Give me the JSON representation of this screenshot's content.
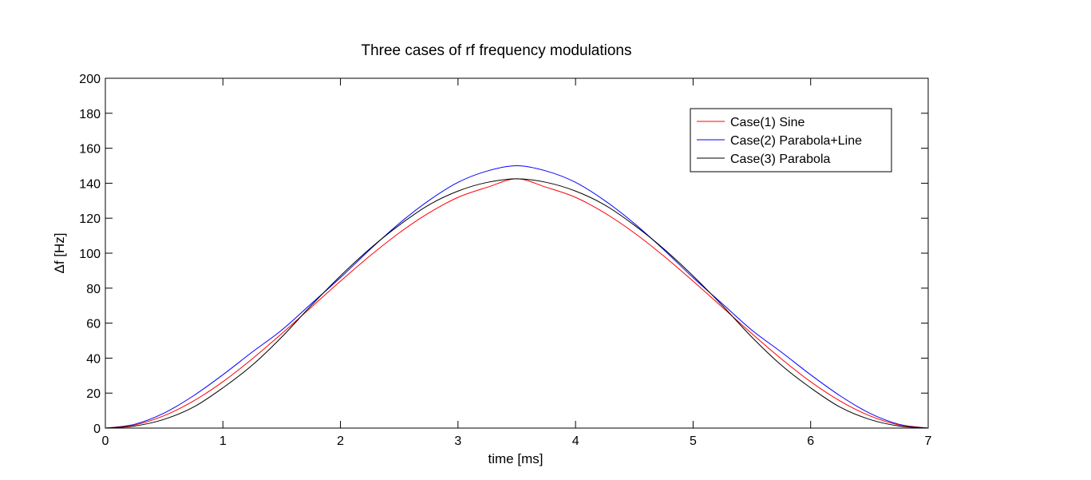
{
  "chart_data": {
    "type": "line",
    "title": "Three cases of rf frequency modulations",
    "xlabel": "time [ms]",
    "ylabel": "Δf [Hz]",
    "xlim": [
      0,
      7
    ],
    "ylim": [
      0,
      200
    ],
    "xticks": [
      0,
      1,
      2,
      3,
      4,
      5,
      6,
      7
    ],
    "yticks": [
      0,
      20,
      40,
      60,
      80,
      100,
      120,
      140,
      160,
      180,
      200
    ],
    "grid": false,
    "legend_position": "top-right",
    "x": [
      0,
      0.25,
      0.5,
      0.75,
      1,
      1.25,
      1.5,
      1.75,
      2,
      2.25,
      2.5,
      2.75,
      3,
      3.25,
      3.5,
      3.75,
      4,
      4.25,
      4.5,
      4.75,
      5,
      5.25,
      5.5,
      5.75,
      6,
      6.25,
      6.5,
      6.75,
      7
    ],
    "series": [
      {
        "name": "Case(1) Sine",
        "color": "#ff0000",
        "values": [
          0,
          1.8,
          7.1,
          15.5,
          26.5,
          39.6,
          54.0,
          69.0,
          84.0,
          98.4,
          111.6,
          122.9,
          131.9,
          137.7,
          142.5,
          137.7,
          131.9,
          122.9,
          111.6,
          98.4,
          84.0,
          69.0,
          54.0,
          39.6,
          26.5,
          15.5,
          7.1,
          1.8,
          0
        ]
      },
      {
        "name": "Case(2) Parabola+Line",
        "color": "#0000ff",
        "values": [
          0,
          2.2,
          8.6,
          18.5,
          30.5,
          43.5,
          56.0,
          71.0,
          86.0,
          102.0,
          117.0,
          130.0,
          140.5,
          147.0,
          150.0,
          147.0,
          140.5,
          130.0,
          117.0,
          102.0,
          86.0,
          71.0,
          56.0,
          43.5,
          30.5,
          18.5,
          8.6,
          2.2,
          0
        ]
      },
      {
        "name": "Case(3) Parabola",
        "color": "#000000",
        "values": [
          0,
          1.2,
          5.0,
          12.0,
          23.0,
          36.0,
          52.0,
          70.0,
          87.0,
          102.5,
          116.0,
          127.5,
          135.5,
          140.5,
          142.5,
          140.5,
          135.5,
          127.5,
          116.0,
          102.5,
          87.0,
          70.0,
          52.0,
          36.0,
          23.0,
          12.0,
          5.0,
          1.2,
          0
        ]
      }
    ]
  }
}
